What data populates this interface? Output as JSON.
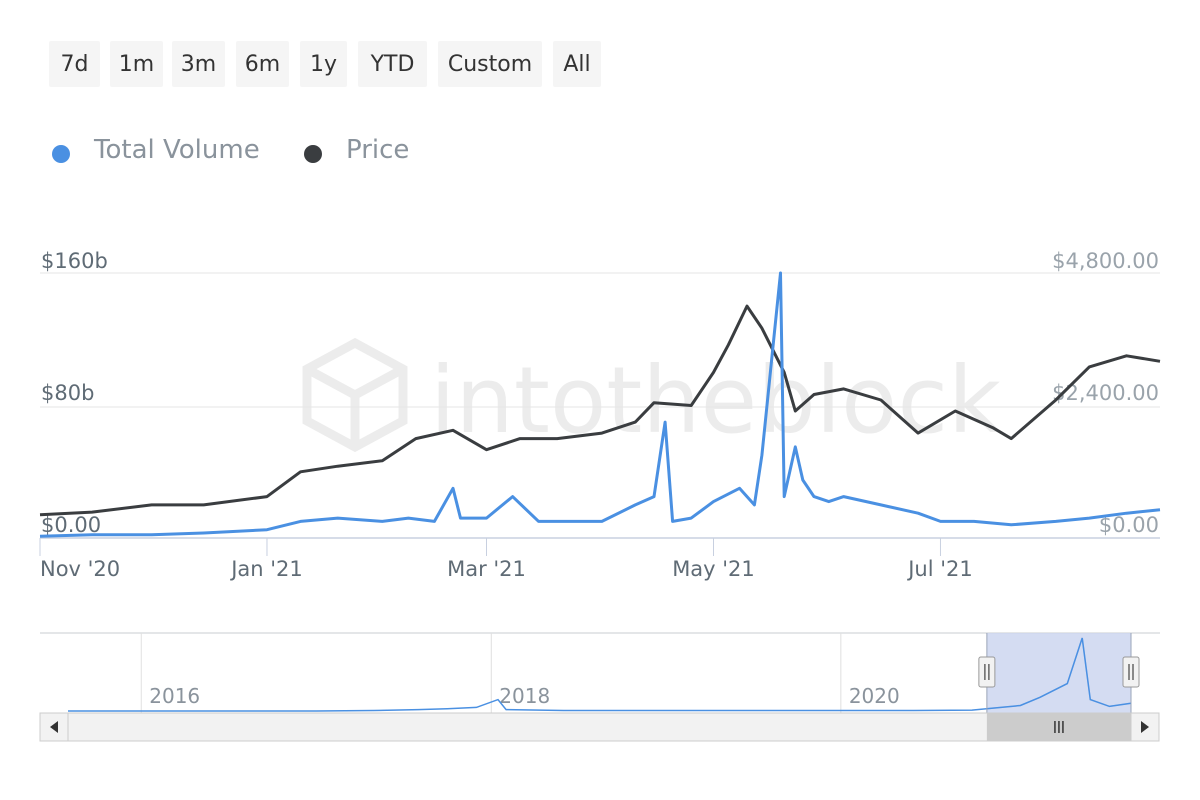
{
  "range_buttons": [
    {
      "label": "7d"
    },
    {
      "label": "1m"
    },
    {
      "label": "3m"
    },
    {
      "label": "6m"
    },
    {
      "label": "1y"
    },
    {
      "label": "YTD"
    },
    {
      "label": "Custom"
    },
    {
      "label": "All"
    }
  ],
  "legend": [
    {
      "label": "Total Volume",
      "color": "#4a90e2"
    },
    {
      "label": "Price",
      "color": "#3a3d40"
    }
  ],
  "watermark": "intotheblock",
  "colors": {
    "volume": "#4a90e2",
    "price": "#3a3d40",
    "grid": "#e6e6e6",
    "axis_text": "#5f6b75",
    "navigator_mask": "#ccd6f0",
    "scrollbar": "#f2f2f2",
    "scroll_thumb": "#cccccc"
  },
  "chart_data": {
    "type": "line",
    "left_axis": {
      "ticks": [
        "$0.00",
        "$80b",
        "$160b"
      ],
      "range": [
        0,
        160
      ]
    },
    "right_axis": {
      "ticks": [
        "$0.00",
        "$2,400.00",
        "$4,800.00"
      ],
      "range": [
        0,
        4800
      ]
    },
    "x_ticks": [
      "Nov '20",
      "Jan '21",
      "Mar '21",
      "May '21",
      "Jul '21"
    ],
    "x_range": [
      "2020-11-01",
      "2021-08-29"
    ],
    "series": [
      {
        "name": "Total Volume",
        "unit": "billion USD",
        "points": [
          [
            "2020-11-01",
            1
          ],
          [
            "2020-11-15",
            2
          ],
          [
            "2020-12-01",
            2
          ],
          [
            "2020-12-15",
            3
          ],
          [
            "2021-01-01",
            5
          ],
          [
            "2021-01-10",
            10
          ],
          [
            "2021-01-20",
            12
          ],
          [
            "2021-02-01",
            10
          ],
          [
            "2021-02-08",
            12
          ],
          [
            "2021-02-15",
            10
          ],
          [
            "2021-02-20",
            30
          ],
          [
            "2021-02-22",
            12
          ],
          [
            "2021-03-01",
            12
          ],
          [
            "2021-03-08",
            25
          ],
          [
            "2021-03-15",
            10
          ],
          [
            "2021-03-25",
            10
          ],
          [
            "2021-04-01",
            10
          ],
          [
            "2021-04-10",
            20
          ],
          [
            "2021-04-15",
            25
          ],
          [
            "2021-04-18",
            70
          ],
          [
            "2021-04-20",
            10
          ],
          [
            "2021-04-25",
            12
          ],
          [
            "2021-05-01",
            22
          ],
          [
            "2021-05-08",
            30
          ],
          [
            "2021-05-12",
            20
          ],
          [
            "2021-05-14",
            50
          ],
          [
            "2021-05-19",
            160
          ],
          [
            "2021-05-20",
            25
          ],
          [
            "2021-05-23",
            55
          ],
          [
            "2021-05-25",
            35
          ],
          [
            "2021-05-28",
            25
          ],
          [
            "2021-06-01",
            22
          ],
          [
            "2021-06-05",
            25
          ],
          [
            "2021-06-15",
            20
          ],
          [
            "2021-06-25",
            15
          ],
          [
            "2021-07-01",
            10
          ],
          [
            "2021-07-10",
            10
          ],
          [
            "2021-07-20",
            8
          ],
          [
            "2021-08-01",
            10
          ],
          [
            "2021-08-10",
            12
          ],
          [
            "2021-08-20",
            15
          ],
          [
            "2021-08-29",
            17
          ]
        ]
      },
      {
        "name": "Price",
        "unit": "USD",
        "points": [
          [
            "2020-11-01",
            420
          ],
          [
            "2020-11-15",
            470
          ],
          [
            "2020-12-01",
            600
          ],
          [
            "2020-12-15",
            600
          ],
          [
            "2021-01-01",
            750
          ],
          [
            "2021-01-10",
            1200
          ],
          [
            "2021-01-20",
            1300
          ],
          [
            "2021-02-01",
            1400
          ],
          [
            "2021-02-10",
            1800
          ],
          [
            "2021-02-20",
            1950
          ],
          [
            "2021-03-01",
            1600
          ],
          [
            "2021-03-10",
            1800
          ],
          [
            "2021-03-20",
            1800
          ],
          [
            "2021-04-01",
            1900
          ],
          [
            "2021-04-10",
            2100
          ],
          [
            "2021-04-15",
            2450
          ],
          [
            "2021-04-25",
            2400
          ],
          [
            "2021-05-01",
            3000
          ],
          [
            "2021-05-05",
            3500
          ],
          [
            "2021-05-10",
            4200
          ],
          [
            "2021-05-14",
            3800
          ],
          [
            "2021-05-20",
            3000
          ],
          [
            "2021-05-23",
            2300
          ],
          [
            "2021-05-28",
            2600
          ],
          [
            "2021-06-05",
            2700
          ],
          [
            "2021-06-15",
            2500
          ],
          [
            "2021-06-25",
            1900
          ],
          [
            "2021-07-05",
            2300
          ],
          [
            "2021-07-15",
            2000
          ],
          [
            "2021-07-20",
            1800
          ],
          [
            "2021-08-01",
            2500
          ],
          [
            "2021-08-10",
            3100
          ],
          [
            "2021-08-20",
            3300
          ],
          [
            "2021-08-29",
            3200
          ]
        ]
      }
    ],
    "navigator": {
      "x_ticks": [
        "2016",
        "2018",
        "2020"
      ],
      "x_range": [
        "2015-08-01",
        "2021-08-29"
      ],
      "selected_range": [
        "2020-11-01",
        "2021-08-29"
      ],
      "volume_points": [
        [
          "2015-08-01",
          0
        ],
        [
          "2016-06-01",
          0
        ],
        [
          "2017-01-01",
          0
        ],
        [
          "2017-05-01",
          1
        ],
        [
          "2017-08-01",
          3
        ],
        [
          "2017-10-01",
          5
        ],
        [
          "2017-12-01",
          8
        ],
        [
          "2018-01-15",
          25
        ],
        [
          "2018-02-01",
          3
        ],
        [
          "2018-06-01",
          1
        ],
        [
          "2019-06-01",
          1
        ],
        [
          "2020-06-01",
          1
        ],
        [
          "2020-10-01",
          2
        ],
        [
          "2021-01-10",
          12
        ],
        [
          "2021-02-20",
          30
        ],
        [
          "2021-04-18",
          60
        ],
        [
          "2021-05-19",
          160
        ],
        [
          "2021-06-05",
          25
        ],
        [
          "2021-07-15",
          10
        ],
        [
          "2021-08-29",
          17
        ]
      ]
    }
  }
}
